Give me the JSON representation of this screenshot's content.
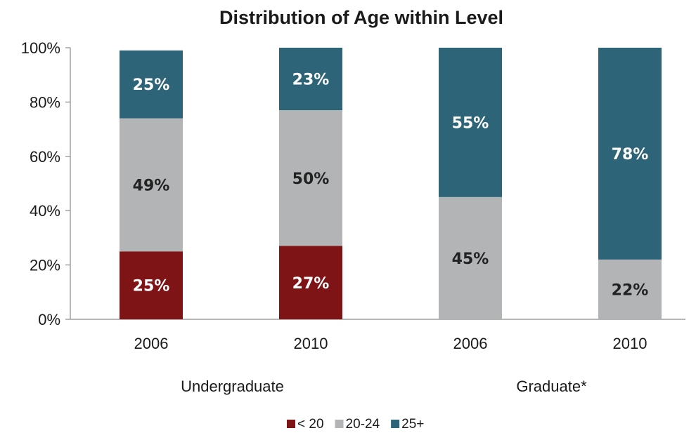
{
  "chart_data": {
    "type": "bar",
    "stacked": true,
    "title": "Distribution of Age within Level",
    "xlabel": "",
    "ylabel": "",
    "ylim": [
      0,
      100
    ],
    "y_ticks": [
      "0%",
      "20%",
      "40%",
      "60%",
      "80%",
      "100%"
    ],
    "categories": [
      "2006",
      "2010",
      "2006",
      "2010"
    ],
    "groups": [
      {
        "label": "Undergraduate",
        "categories": [
          0,
          1
        ]
      },
      {
        "label": "Graduate*",
        "categories": [
          2,
          3
        ]
      }
    ],
    "series": [
      {
        "name": "< 20",
        "color": "#7f1416",
        "label_color": "#ffffff",
        "values": [
          25,
          27,
          0,
          0
        ],
        "labels": [
          "25%",
          "27%",
          "",
          ""
        ]
      },
      {
        "name": "20-24",
        "color": "#b2b4b6",
        "label_color": "#222222",
        "values": [
          49,
          50,
          45,
          22
        ],
        "labels": [
          "49%",
          "50%",
          "45%",
          "22%"
        ]
      },
      {
        "name": "25+",
        "color": "#2e6477",
        "label_color": "#ffffff",
        "values": [
          25,
          23,
          55,
          78
        ],
        "labels": [
          "25%",
          "23%",
          "55%",
          "78%"
        ]
      }
    ],
    "grid": false,
    "legend": "bottom-center"
  }
}
